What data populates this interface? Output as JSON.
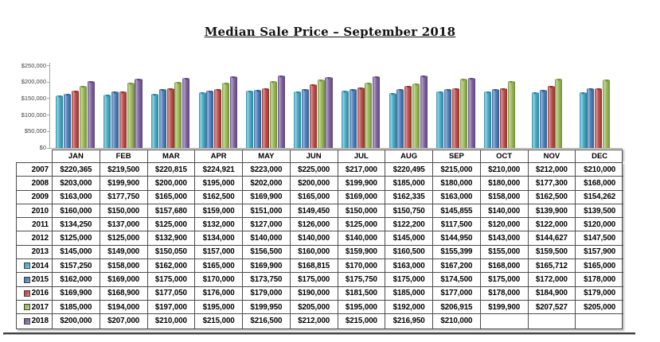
{
  "title": "Median Sale Price – September 2018",
  "chart_data": {
    "type": "bar",
    "title": "Median Sale Price – September 2018",
    "categories": [
      "JAN",
      "FEB",
      "MAR",
      "APR",
      "MAY",
      "JUN",
      "JUL",
      "AUG",
      "SEP",
      "OCT",
      "NOV",
      "DEC"
    ],
    "series": [
      {
        "name": "2014",
        "color": "#4BACC6",
        "light": "#92d4e6",
        "dark": "#31859c",
        "values": [
          157250,
          158000,
          162000,
          165000,
          169900,
          168815,
          170000,
          163000,
          167200,
          168000,
          165712,
          165000
        ]
      },
      {
        "name": "2015",
        "color": "#4F81BD",
        "light": "#95b3d7",
        "dark": "#366092",
        "values": [
          162000,
          169000,
          175000,
          170000,
          173750,
          175000,
          175750,
          175000,
          174500,
          175000,
          172000,
          178000
        ]
      },
      {
        "name": "2016",
        "color": "#C0504D",
        "light": "#d99694",
        "dark": "#8c3836",
        "values": [
          169900,
          168900,
          177050,
          176000,
          179000,
          190000,
          181500,
          185000,
          177000,
          178000,
          184900,
          179000
        ]
      },
      {
        "name": "2017",
        "color": "#9BBB59",
        "light": "#c3d69b",
        "dark": "#76923c",
        "values": [
          185000,
          194000,
          197000,
          195000,
          199950,
          205000,
          195000,
          192000,
          206915,
          199900,
          207527,
          205000
        ]
      },
      {
        "name": "2018",
        "color": "#8064A2",
        "light": "#b3a2c7",
        "dark": "#5f4a7d",
        "values": [
          200000,
          207000,
          210000,
          215000,
          216500,
          212000,
          215000,
          216950,
          210000,
          null,
          null,
          null
        ]
      }
    ],
    "ylim": [
      0,
      250000
    ],
    "yticks": [
      "$250,000",
      "$200,000",
      "$150,000",
      "$100,000",
      "$50,000",
      "$0"
    ],
    "grid": false,
    "legend_position": "table-row-markers"
  },
  "table": {
    "columns": [
      "JAN",
      "FEB",
      "MAR",
      "APR",
      "MAY",
      "JUN",
      "JUL",
      "AUG",
      "SEP",
      "OCT",
      "NOV",
      "DEC"
    ],
    "rows": [
      {
        "year": "2007",
        "marker_color": null,
        "values": [
          "$220,365",
          "$219,500",
          "$220,815",
          "$224,921",
          "$223,000",
          "$225,000",
          "$217,000",
          "$220,495",
          "$215,000",
          "$210,000",
          "$212,000",
          "$210,000"
        ]
      },
      {
        "year": "2008",
        "marker_color": null,
        "values": [
          "$203,000",
          "$199,900",
          "$200,000",
          "$195,000",
          "$202,000",
          "$200,000",
          "$199,900",
          "$185,000",
          "$180,000",
          "$180,000",
          "$177,300",
          "$168,000"
        ]
      },
      {
        "year": "2009",
        "marker_color": null,
        "values": [
          "$163,000",
          "$177,750",
          "$165,000",
          "$162,500",
          "$169,900",
          "$165,000",
          "$169,000",
          "$162,335",
          "$163,000",
          "$158,000",
          "$162,500",
          "$154,262"
        ]
      },
      {
        "year": "2010",
        "marker_color": null,
        "values": [
          "$160,000",
          "$150,000",
          "$157,680",
          "$159,000",
          "$151,000",
          "$149,450",
          "$150,000",
          "$150,750",
          "$145,855",
          "$140,000",
          "$139,900",
          "$139,500"
        ]
      },
      {
        "year": "2011",
        "marker_color": null,
        "values": [
          "$134,250",
          "$137,000",
          "$125,000",
          "$132,000",
          "$127,000",
          "$126,000",
          "$125,000",
          "$122,200",
          "$117,500",
          "$120,000",
          "$122,000",
          "$120,000"
        ]
      },
      {
        "year": "2012",
        "marker_color": null,
        "values": [
          "$125,000",
          "$125,000",
          "$132,900",
          "$134,000",
          "$140,000",
          "$140,000",
          "$140,000",
          "$145,000",
          "$144,950",
          "$143,000",
          "$144,627",
          "$147,500"
        ]
      },
      {
        "year": "2013",
        "marker_color": null,
        "values": [
          "$145,000",
          "$149,000",
          "$150,050",
          "$157,000",
          "$156,500",
          "$160,000",
          "$159,900",
          "$160,500",
          "$155,399",
          "$155,000",
          "$159,500",
          "$157,900"
        ]
      },
      {
        "year": "2014",
        "marker_color": "#4BACC6",
        "values": [
          "$157,250",
          "$158,000",
          "$162,000",
          "$165,000",
          "$169,900",
          "$168,815",
          "$170,000",
          "$163,000",
          "$167,200",
          "$168,000",
          "$165,712",
          "$165,000"
        ]
      },
      {
        "year": "2015",
        "marker_color": "#4F81BD",
        "values": [
          "$162,000",
          "$169,000",
          "$175,000",
          "$170,000",
          "$173,750",
          "$175,000",
          "$175,750",
          "$175,000",
          "$174,500",
          "$175,000",
          "$172,000",
          "$178,000"
        ]
      },
      {
        "year": "2016",
        "marker_color": "#C0504D",
        "values": [
          "$169,900",
          "$168,900",
          "$177,050",
          "$176,000",
          "$179,000",
          "$190,000",
          "$181,500",
          "$185,000",
          "$177,000",
          "$178,000",
          "$184,900",
          "$179,000"
        ]
      },
      {
        "year": "2017",
        "marker_color": "#9BBB59",
        "values": [
          "$185,000",
          "$194,000",
          "$197,000",
          "$195,000",
          "$199,950",
          "$205,000",
          "$195,000",
          "$192,000",
          "$206,915",
          "$199,900",
          "$207,527",
          "$205,000"
        ]
      },
      {
        "year": "2018",
        "marker_color": "#8064A2",
        "values": [
          "$200,000",
          "$207,000",
          "$210,000",
          "$215,000",
          "$216,500",
          "$212,000",
          "$215,000",
          "$216,950",
          "$210,000",
          "",
          "",
          ""
        ]
      }
    ]
  }
}
